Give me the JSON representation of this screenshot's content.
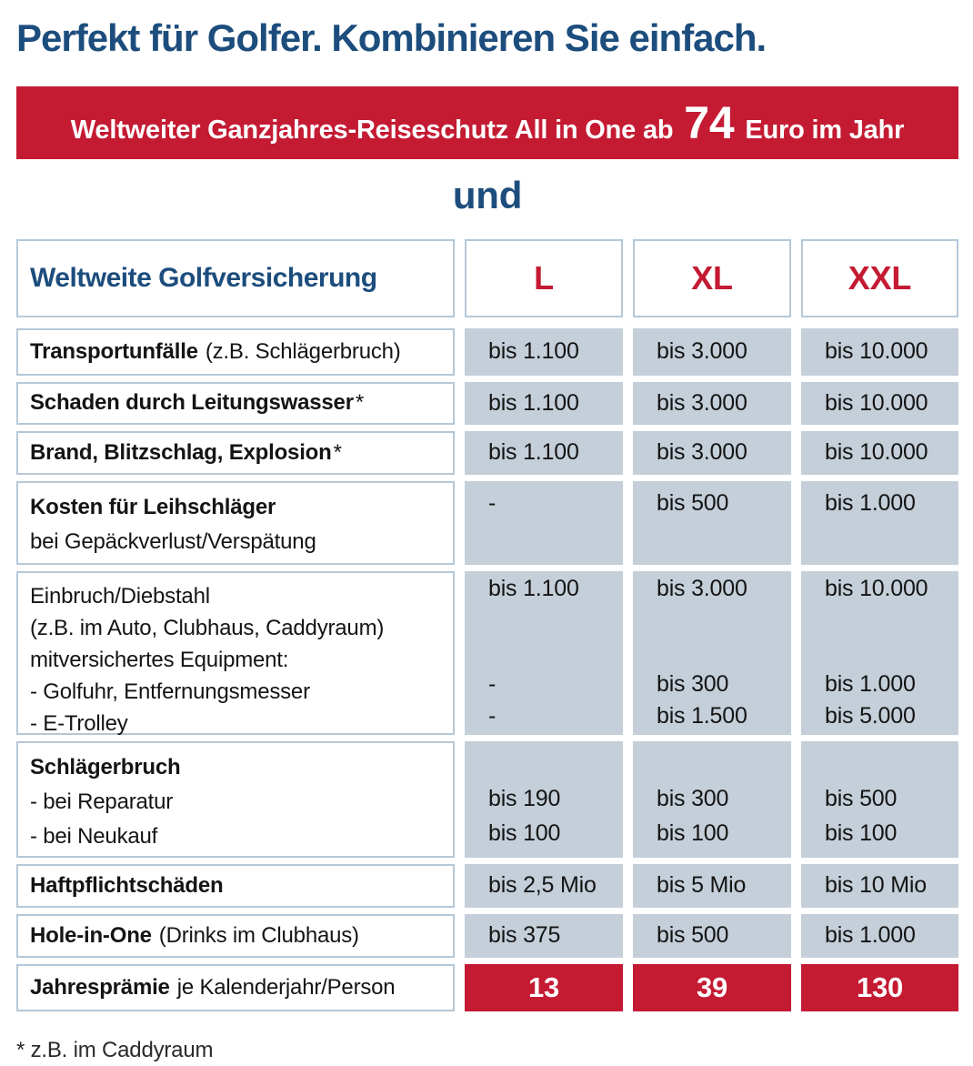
{
  "title": "Perfekt für Golfer. Kombinieren Sie einfach.",
  "banner": {
    "prefix": "Weltweiter Ganzjahres-Reiseschutz All in One ab",
    "price": "74",
    "suffix": "Euro im Jahr"
  },
  "connector": "und",
  "colors": {
    "navy": "#1c4d7d",
    "red": "#c41b33",
    "cell_gray_blue": "#c4cfd9",
    "cell_border": "#b5c8d8"
  },
  "table": {
    "header": {
      "label": "Weltweite Golfversicherung",
      "columns": [
        "L",
        "XL",
        "XXL"
      ]
    },
    "rows": [
      {
        "label": {
          "main": "Transportunfälle",
          "note": "(z.B. Schlägerbruch)"
        },
        "values": [
          "bis 1.100",
          "bis 3.000",
          "bis 10.000"
        ]
      },
      {
        "label": {
          "main": "Schaden durch Leitungswasser",
          "asterisk": "*"
        },
        "values": [
          "bis 1.100",
          "bis 3.000",
          "bis 10.000"
        ]
      },
      {
        "label": {
          "main": "Brand, Blitzschlag, Explosion",
          "asterisk": "*"
        },
        "values": [
          "bis 1.100",
          "bis 3.000",
          "bis 10.000"
        ]
      },
      {
        "label": {
          "main": "Kosten für Leihschläger",
          "sub": "bei Gepäckverlust/Verspätung"
        },
        "values": [
          "-",
          "bis 500",
          "bis 1.000"
        ]
      },
      {
        "label": {
          "lines": [
            "Einbruch/Diebstahl",
            "(z.B. im Auto, Clubhaus, Caddyraum)",
            "mitversichertes Equipment:",
            "- Golfuhr, Entfernungsmesser",
            "- E-Trolley"
          ]
        },
        "values_top": [
          "bis 1.100",
          "bis 3.000",
          "bis 10.000"
        ],
        "values_line4": [
          "-",
          "bis 300",
          "bis 1.000"
        ],
        "values_line5": [
          "-",
          "bis 1.500",
          "bis 5.000"
        ]
      },
      {
        "label": {
          "main": "Schlägerbruch",
          "line2": "- bei Reparatur",
          "line3": "- bei Neukauf"
        },
        "values_line2": [
          "bis 190",
          "bis 300",
          "bis 500"
        ],
        "values_line3": [
          "bis 100",
          "bis 100",
          "bis 100"
        ]
      },
      {
        "label": {
          "main": "Haftpflichtschäden"
        },
        "values": [
          "bis 2,5 Mio",
          "bis 5 Mio",
          "bis 10 Mio"
        ]
      },
      {
        "label": {
          "main": "Hole-in-One",
          "note": "(Drinks im Clubhaus)"
        },
        "values": [
          "bis 375",
          "bis 500",
          "bis 1.000"
        ]
      },
      {
        "label": {
          "main": "Jahresprämie",
          "note": "je Kalenderjahr/Person"
        },
        "values": [
          "13",
          "39",
          "130"
        ]
      }
    ]
  },
  "footnote": "* z.B. im Caddyraum"
}
